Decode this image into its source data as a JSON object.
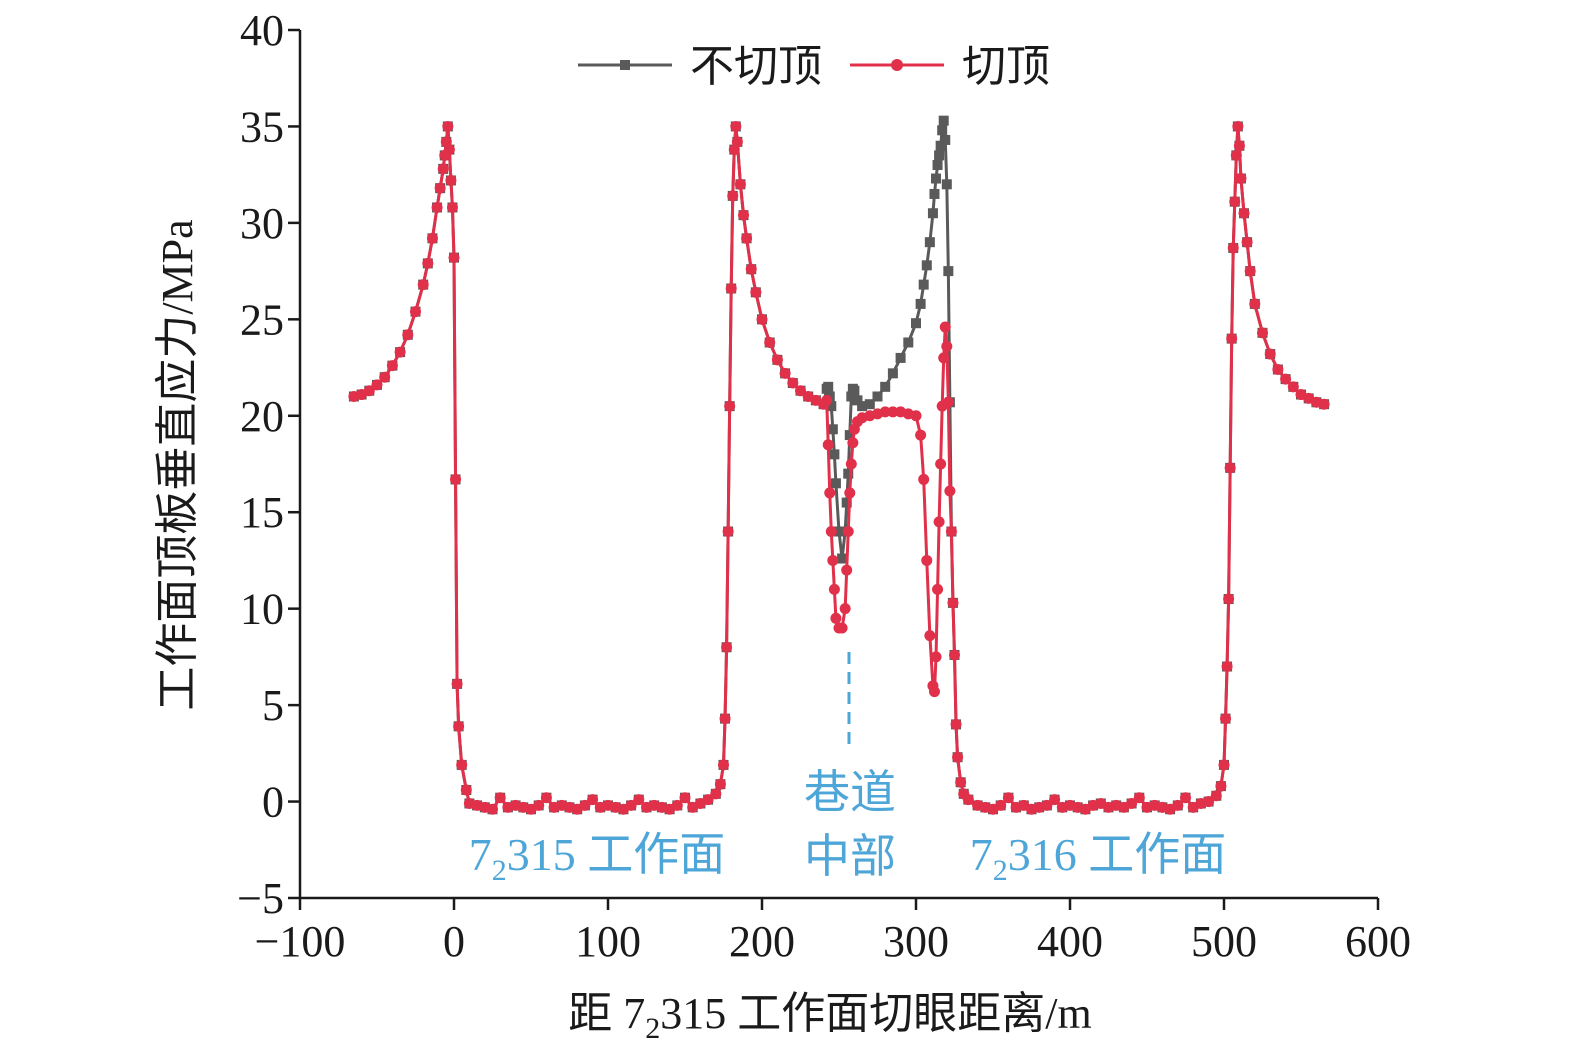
{
  "chart_data": {
    "type": "line",
    "y_label": "工作面顶板垂直应力/MPa",
    "x_label_parts": [
      "距 7",
      "2",
      "315 工作面切眼距离/m"
    ],
    "annotations": [
      {
        "parts": [
          "7",
          "2",
          "315 工作面"
        ]
      },
      {
        "parts": [
          "7",
          "2",
          "316 工作面"
        ]
      }
    ],
    "midline_label": [
      "巷道",
      "中部"
    ],
    "xlim": [
      -100,
      600
    ],
    "xticks": [
      {
        "value": -100,
        "label": "−100"
      },
      0,
      100,
      200,
      300,
      400,
      500,
      600
    ],
    "ylim": [
      -5,
      40
    ],
    "yticks": [
      {
        "value": -5,
        "label": "−5"
      },
      0,
      5,
      10,
      15,
      20,
      25,
      30,
      35,
      40
    ],
    "legend": "top",
    "x": [
      -65,
      -60,
      -55,
      -50,
      -45,
      -40,
      -35,
      -30,
      -25,
      -20,
      -17,
      -14,
      -11,
      -9,
      -7,
      -6,
      -5,
      -4,
      -3,
      -2,
      -1,
      0,
      1,
      2,
      3,
      5,
      8,
      10,
      15,
      20,
      25,
      30,
      35,
      40,
      45,
      50,
      55,
      60,
      65,
      70,
      75,
      80,
      85,
      90,
      95,
      100,
      105,
      110,
      115,
      120,
      125,
      130,
      135,
      140,
      145,
      150,
      155,
      160,
      165,
      170,
      173,
      175,
      176,
      177,
      178,
      179,
      180,
      181,
      182,
      183,
      184,
      186,
      188,
      190,
      193,
      196,
      200,
      205,
      210,
      215,
      220,
      225,
      230,
      235,
      240,
      242,
      243,
      244,
      245,
      246,
      247,
      248,
      250,
      252,
      254,
      255,
      256,
      257,
      258,
      259,
      260,
      262,
      265,
      270,
      275,
      280,
      285,
      290,
      295,
      300,
      303,
      305,
      307,
      309,
      311,
      312,
      313,
      314,
      315,
      316,
      317,
      318,
      319,
      320,
      321,
      322,
      323,
      324,
      325,
      326,
      327,
      329,
      331,
      334,
      340,
      345,
      350,
      355,
      360,
      365,
      370,
      375,
      380,
      385,
      390,
      395,
      400,
      405,
      410,
      415,
      420,
      425,
      430,
      435,
      440,
      445,
      450,
      455,
      460,
      465,
      470,
      475,
      480,
      485,
      490,
      495,
      498,
      500,
      501,
      502,
      503,
      504,
      505,
      506,
      507,
      508,
      509,
      510,
      511,
      513,
      515,
      517,
      520,
      525,
      530,
      535,
      540,
      545,
      550,
      555,
      560,
      565
    ],
    "series": [
      {
        "name": "不切顶",
        "color": "#5a5a5a",
        "marker": "square",
        "values": [
          21.0,
          21.1,
          21.3,
          21.6,
          22.0,
          22.6,
          23.3,
          24.2,
          25.4,
          26.8,
          27.9,
          29.2,
          30.8,
          31.8,
          32.8,
          33.5,
          34.2,
          35.0,
          33.8,
          32.2,
          30.8,
          28.2,
          16.7,
          6.1,
          3.9,
          1.9,
          0.6,
          -0.1,
          -0.2,
          -0.3,
          -0.4,
          0.2,
          -0.3,
          -0.2,
          -0.3,
          -0.4,
          -0.2,
          0.2,
          -0.3,
          -0.2,
          -0.3,
          -0.4,
          -0.2,
          0.1,
          -0.3,
          -0.2,
          -0.3,
          -0.4,
          -0.2,
          0.1,
          -0.3,
          -0.2,
          -0.3,
          -0.4,
          -0.2,
          0.2,
          -0.3,
          -0.1,
          0.1,
          0.4,
          0.9,
          1.9,
          4.3,
          8.0,
          14.0,
          20.5,
          26.6,
          31.4,
          33.8,
          35.0,
          34.2,
          32.0,
          30.4,
          29.2,
          27.6,
          26.4,
          25.0,
          23.8,
          22.9,
          22.2,
          21.7,
          21.3,
          21.0,
          20.8,
          20.6,
          21.4,
          21.5,
          21.0,
          20.5,
          19.3,
          18.0,
          16.5,
          14.0,
          12.6,
          14.0,
          15.5,
          17.0,
          19.0,
          21.0,
          21.4,
          21.3,
          20.8,
          20.5,
          20.6,
          21.0,
          21.5,
          22.2,
          23.0,
          23.8,
          24.8,
          25.8,
          26.8,
          27.8,
          29.0,
          30.5,
          31.5,
          32.3,
          33.0,
          33.5,
          34.0,
          34.8,
          35.3,
          34.3,
          32.0,
          27.5,
          20.7,
          14.0,
          10.3,
          7.6,
          4.0,
          2.3,
          1.0,
          0.4,
          0.1,
          -0.2,
          -0.3,
          -0.4,
          -0.2,
          0.2,
          -0.3,
          -0.2,
          -0.4,
          -0.3,
          -0.2,
          0.1,
          -0.3,
          -0.2,
          -0.3,
          -0.4,
          -0.2,
          -0.1,
          -0.3,
          -0.2,
          -0.3,
          -0.1,
          0.2,
          -0.3,
          -0.2,
          -0.3,
          -0.4,
          -0.2,
          0.2,
          -0.3,
          -0.1,
          0.0,
          0.3,
          0.8,
          1.9,
          4.3,
          7.0,
          10.5,
          17.3,
          24.0,
          28.7,
          31.1,
          33.5,
          35.0,
          34.0,
          32.3,
          30.5,
          29.0,
          27.5,
          25.8,
          24.3,
          23.2,
          22.4,
          21.9,
          21.5,
          21.1,
          20.9,
          20.7,
          20.6
        ]
      },
      {
        "name": "切顶",
        "color": "#e0304a",
        "marker": "circle",
        "values": [
          21.0,
          21.1,
          21.3,
          21.6,
          22.0,
          22.6,
          23.3,
          24.2,
          25.4,
          26.8,
          27.9,
          29.2,
          30.8,
          31.8,
          32.8,
          33.5,
          34.2,
          35.0,
          33.8,
          32.2,
          30.8,
          28.2,
          16.7,
          6.1,
          3.9,
          1.9,
          0.6,
          -0.1,
          -0.2,
          -0.3,
          -0.4,
          0.2,
          -0.3,
          -0.2,
          -0.3,
          -0.4,
          -0.2,
          0.2,
          -0.3,
          -0.2,
          -0.3,
          -0.4,
          -0.2,
          0.1,
          -0.3,
          -0.2,
          -0.3,
          -0.4,
          -0.2,
          0.1,
          -0.3,
          -0.2,
          -0.3,
          -0.4,
          -0.2,
          0.2,
          -0.3,
          -0.1,
          0.1,
          0.4,
          0.9,
          1.9,
          4.3,
          8.0,
          14.0,
          20.5,
          26.6,
          31.4,
          33.8,
          35.0,
          34.2,
          32.0,
          30.4,
          29.2,
          27.6,
          26.4,
          25.0,
          23.8,
          22.9,
          22.2,
          21.7,
          21.3,
          21.0,
          20.8,
          20.6,
          20.8,
          18.5,
          16.0,
          14.0,
          12.5,
          11.0,
          9.5,
          9.0,
          9.0,
          10.0,
          12.0,
          14.0,
          16.0,
          17.5,
          18.6,
          19.3,
          19.7,
          19.9,
          20.0,
          20.1,
          20.2,
          20.2,
          20.2,
          20.1,
          20.0,
          19.0,
          16.7,
          12.5,
          8.6,
          6.0,
          5.7,
          7.5,
          11.0,
          14.5,
          17.5,
          20.5,
          23.0,
          24.6,
          23.6,
          20.7,
          16.1,
          14.0,
          10.3,
          7.6,
          4.0,
          2.3,
          1.0,
          0.4,
          0.1,
          -0.2,
          -0.3,
          -0.4,
          -0.2,
          0.2,
          -0.3,
          -0.2,
          -0.4,
          -0.3,
          -0.2,
          0.1,
          -0.3,
          -0.2,
          -0.3,
          -0.4,
          -0.2,
          -0.1,
          -0.3,
          -0.2,
          -0.3,
          -0.1,
          0.2,
          -0.3,
          -0.2,
          -0.3,
          -0.4,
          -0.2,
          0.2,
          -0.3,
          -0.1,
          0.0,
          0.3,
          0.8,
          1.9,
          4.3,
          7.0,
          10.5,
          17.3,
          24.0,
          28.7,
          31.1,
          33.5,
          35.0,
          34.0,
          32.3,
          30.5,
          29.0,
          27.5,
          25.8,
          24.3,
          23.2,
          22.4,
          21.9,
          21.5,
          21.1,
          20.9,
          20.7,
          20.6
        ]
      }
    ]
  }
}
